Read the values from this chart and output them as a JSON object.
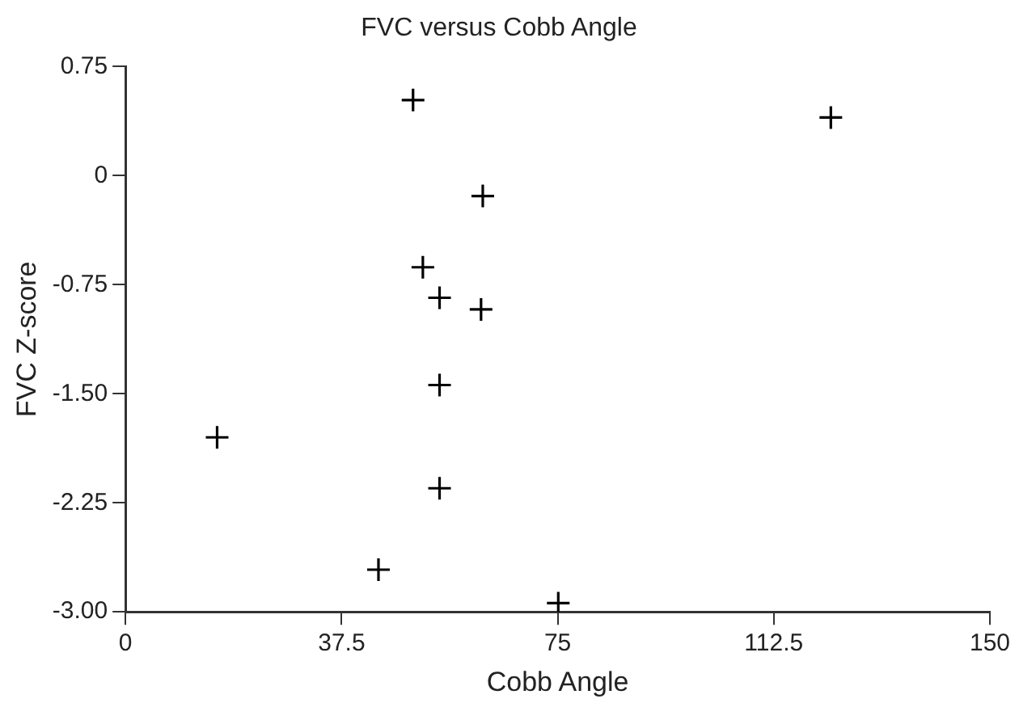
{
  "chart_data": {
    "type": "scatter",
    "title": "FVC versus Cobb Angle",
    "xlabel": "Cobb Angle",
    "ylabel": "FVC Z-score",
    "x": [
      49.9,
      62.0,
      51.6,
      54.5,
      61.7,
      54.5,
      15.9,
      54.5,
      43.9,
      122.4,
      75.1
    ],
    "series": [
      {
        "color": "#000000",
        "values": [
          0.52,
          -0.14,
          -0.63,
          -0.84,
          -0.92,
          -1.44,
          -1.8,
          -2.15,
          -2.71,
          0.4,
          -2.94
        ]
      }
    ],
    "xlim": [
      0,
      150
    ],
    "xticks": [
      0,
      37.5,
      75,
      112.5,
      150
    ],
    "ylim": [
      -3,
      0.75
    ],
    "yticks": [
      {
        "value": -3,
        "label": "-3.00"
      },
      {
        "value": -2.25,
        "label": "-2.25"
      },
      {
        "value": -1.5,
        "label": "-1.50"
      },
      {
        "value": -0.75,
        "label": "-0.75"
      },
      0,
      0.75
    ],
    "grid": false,
    "legend": false,
    "marker": "cross"
  }
}
